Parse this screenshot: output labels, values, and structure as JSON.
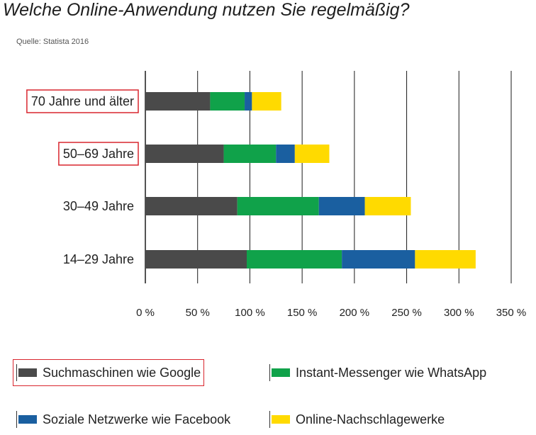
{
  "title": "Welche Online-Anwendung nutzen Sie regelmäßig?",
  "source": "Quelle: Statista 2016",
  "highlight_color": "#d9262e",
  "chart_data": {
    "type": "bar",
    "orientation": "horizontal",
    "stacked": true,
    "categories": [
      "70 Jahre und älter",
      "50–69 Jahre",
      "30–49 Jahre",
      "14–29 Jahre"
    ],
    "highlighted_categories": [
      "70 Jahre und älter",
      "50–69 Jahre"
    ],
    "series": [
      {
        "name": "Suchmaschinen wie Google",
        "color": "#4a4a4a",
        "values": [
          62,
          75,
          88,
          97
        ]
      },
      {
        "name": "Instant-Messenger wie WhatsApp",
        "color": "#10a24a",
        "values": [
          33,
          50,
          78,
          91
        ]
      },
      {
        "name": "Soziale Netzwerke wie Facebook",
        "color": "#1a5fa0",
        "values": [
          7,
          18,
          44,
          70
        ]
      },
      {
        "name": "Online-Nachschlagewerke",
        "color": "#ffda00",
        "values": [
          28,
          33,
          44,
          58
        ]
      }
    ],
    "highlighted_series": [
      "Suchmaschinen wie Google"
    ],
    "xlim": [
      0,
      350
    ],
    "xticks": [
      "0 %",
      "50 %",
      "100 %",
      "150 %",
      "200 %",
      "250 %",
      "300 %",
      "350 %"
    ],
    "grid": true,
    "legend_position": "bottom"
  }
}
